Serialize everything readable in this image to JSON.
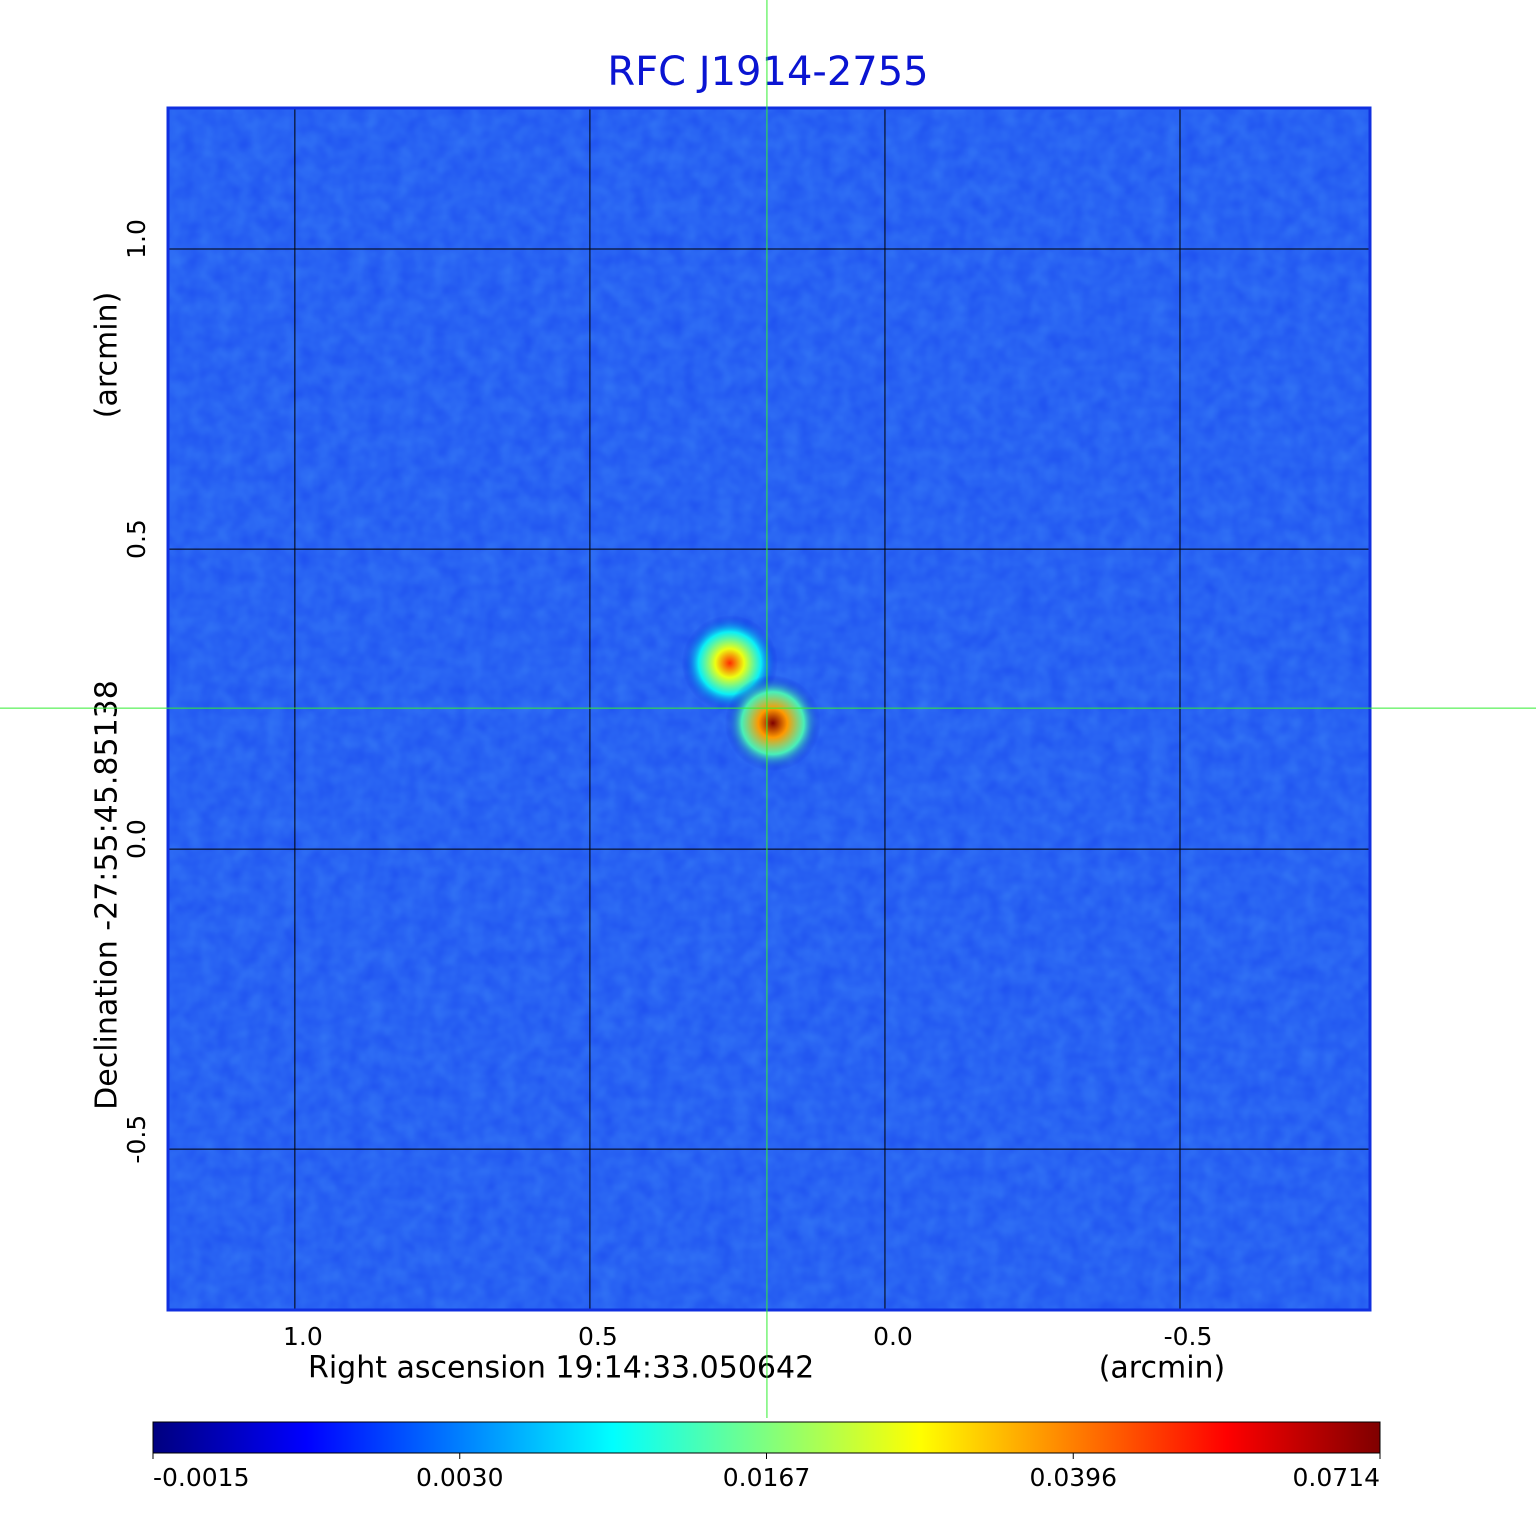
{
  "chart_data": {
    "type": "image",
    "title": "RFC J1914-2755",
    "title_color": "#0a14d2",
    "xlabel": "Right ascension  19:14:33.050642",
    "xunit": "(arcmin)",
    "ylabel": "Declination  -27:55:45.85138",
    "yunit": "(arcmin)",
    "xlim": [
      1.215,
      -0.822
    ],
    "ylim": [
      -0.768,
      1.235
    ],
    "xticks": [
      {
        "value": 1,
        "label": "1.0"
      },
      0.5,
      {
        "value": 0,
        "label": "0.0"
      },
      -0.5
    ],
    "yticks": [
      {
        "value": 1,
        "label": "1.0"
      },
      0.5,
      {
        "value": 0,
        "label": "0.0"
      },
      -0.5
    ],
    "grid": true,
    "background": "#1e50f0",
    "components": [
      {
        "x": 0.263,
        "y": 0.31,
        "peak": 0.05
      },
      {
        "x": 0.19,
        "y": 0.21,
        "peak": 0.0714
      }
    ],
    "crosshair": {
      "x": 0.2,
      "y": 0.235,
      "color": "#33ee33"
    },
    "colormap": [
      "#00007f",
      "#0000ff",
      "#007fff",
      "#00ffff",
      "#7fff7f",
      "#ffff00",
      "#ff7f00",
      "#ff0000",
      "#7f0000"
    ],
    "colorbar_ticks": [
      {
        "value": -0.0015,
        "label": "-0.0015"
      },
      {
        "value": 0.003,
        "label": "0.0030"
      },
      0.0167,
      0.0396,
      0.0714
    ]
  }
}
